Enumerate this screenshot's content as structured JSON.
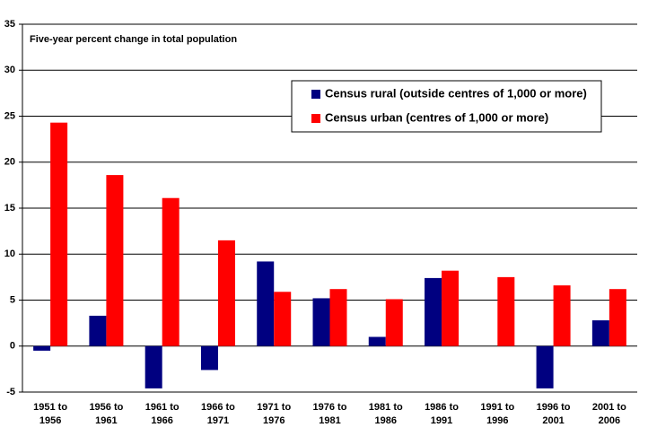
{
  "chart_data": {
    "type": "bar",
    "title": "Five-year percent change in total population",
    "categories": [
      "1951 to 1956",
      "1956 to 1961",
      "1961 to 1966",
      "1966 to 1971",
      "1971 to 1976",
      "1976 to 1981",
      "1981 to 1986",
      "1986 to 1991",
      "1991 to 1996",
      "1996 to 2001",
      "2001 to 2006"
    ],
    "series": [
      {
        "name": "Census rural (outside centres of 1,000 or more)",
        "color": "#000080",
        "values": [
          -0.5,
          3.3,
          -4.6,
          -2.6,
          9.2,
          5.2,
          1.0,
          7.4,
          0,
          -4.6,
          2.8
        ]
      },
      {
        "name": "Census urban (centres of 1,000 or more)",
        "color": "#ff0000",
        "values": [
          24.3,
          18.6,
          16.1,
          11.5,
          5.9,
          6.2,
          5.1,
          8.2,
          7.5,
          6.6,
          6.2
        ]
      }
    ],
    "ylim": [
      -5,
      35
    ],
    "yticks": [
      -5,
      0,
      5,
      10,
      15,
      20,
      25,
      30,
      35
    ],
    "grid": true
  }
}
